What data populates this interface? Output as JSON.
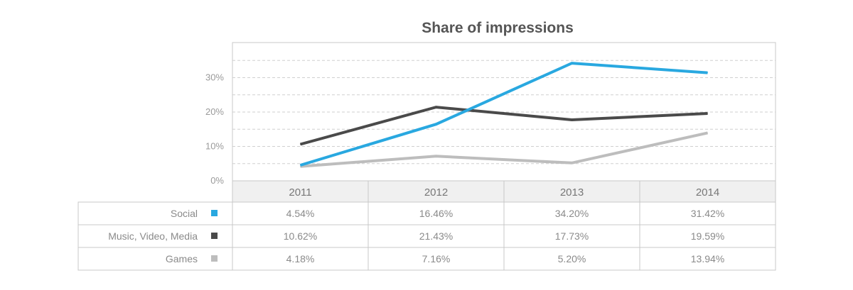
{
  "chart_data": {
    "type": "line",
    "title": "Share of impressions",
    "categories": [
      "2011",
      "2012",
      "2013",
      "2014"
    ],
    "ylim": [
      0,
      40
    ],
    "yticks": [
      "0%",
      "10%",
      "20%",
      "30%"
    ],
    "grid": true,
    "legend": "data table rows",
    "series": [
      {
        "name": "Social",
        "color": "#29a8e0",
        "values": [
          4.54,
          16.46,
          34.2,
          31.42
        ],
        "labels": [
          "4.54%",
          "16.46%",
          "34.20%",
          "31.42%"
        ]
      },
      {
        "name": "Music, Video, Media",
        "color": "#4a4a4a",
        "values": [
          10.62,
          21.43,
          17.73,
          19.59
        ],
        "labels": [
          "10.62%",
          "21.43%",
          "17.73%",
          "19.59%"
        ]
      },
      {
        "name": "Games",
        "color": "#bdbdbd",
        "values": [
          4.18,
          7.16,
          5.2,
          13.94
        ],
        "labels": [
          "4.18%",
          "7.16%",
          "5.20%",
          "13.94%"
        ]
      }
    ]
  }
}
